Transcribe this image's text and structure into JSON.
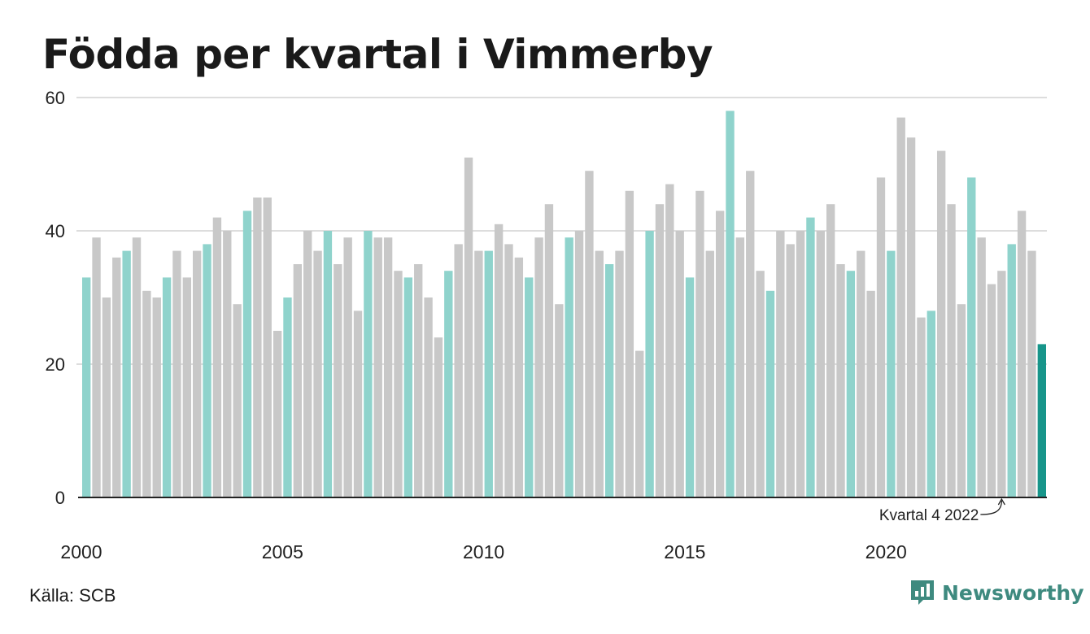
{
  "header": {
    "title": "Födda per kvartal i Vimmerby"
  },
  "footer": {
    "source": "Källa: SCB",
    "brand": "Newsworthy"
  },
  "colors": {
    "default_bar": "#c8c8c8",
    "q1_bar": "#8fd3cc",
    "latest_bar": "#17958a",
    "grid": "#dddddd",
    "axis": "#222222",
    "brand": "#3e8a7f"
  },
  "chart_data": {
    "type": "bar",
    "title": "Födda per kvartal i Vimmerby",
    "xlabel": "",
    "ylabel": "",
    "ylim": [
      0,
      60
    ],
    "yticks": [
      0,
      20,
      40,
      60
    ],
    "xticks": [
      {
        "label": "2000",
        "at_year": 2000
      },
      {
        "label": "2005",
        "at_year": 2005
      },
      {
        "label": "2010",
        "at_year": 2010
      },
      {
        "label": "2015",
        "at_year": 2015
      },
      {
        "label": "2020",
        "at_year": 2020
      }
    ],
    "start_year": 2000,
    "start_quarter": 1,
    "grid": true,
    "highlight": "first quarter of each year",
    "annotation": {
      "text": "Kvartal 4 2022",
      "year": 2022,
      "quarter": 4
    },
    "values": [
      33,
      39,
      30,
      36,
      37,
      39,
      31,
      30,
      33,
      37,
      33,
      37,
      38,
      42,
      40,
      29,
      43,
      45,
      45,
      25,
      30,
      35,
      40,
      37,
      40,
      35,
      39,
      28,
      40,
      39,
      39,
      34,
      33,
      35,
      30,
      24,
      34,
      38,
      51,
      37,
      37,
      41,
      38,
      36,
      33,
      39,
      44,
      29,
      39,
      40,
      49,
      37,
      35,
      37,
      46,
      22,
      40,
      44,
      47,
      40,
      33,
      46,
      37,
      43,
      58,
      39,
      49,
      34,
      31,
      40,
      38,
      40,
      42,
      40,
      44,
      35,
      34,
      37,
      31,
      48,
      37,
      57,
      54,
      27,
      28,
      52,
      44,
      29,
      48,
      39,
      32,
      34,
      38,
      43,
      37,
      23
    ]
  }
}
